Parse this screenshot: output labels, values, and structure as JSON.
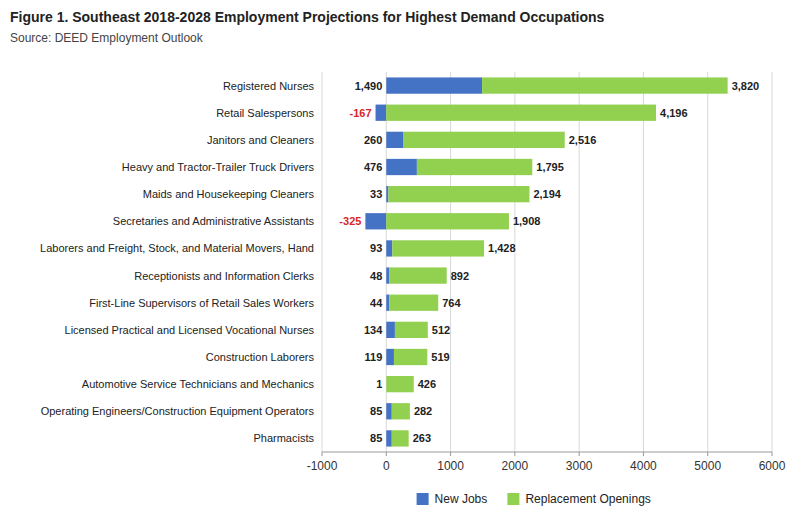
{
  "chart_data": {
    "type": "bar",
    "orientation": "horizontal",
    "stacked": true,
    "title": "Figure 1. Southeast 2018-2028 Employment Projections for Highest Demand Occupations",
    "subtitle": "Source: DEED Employment Outlook",
    "categories": [
      "Registered Nurses",
      "Retail Salespersons",
      "Janitors and Cleaners",
      "Heavy and Tractor-Trailer Truck Drivers",
      "Maids and Housekeeping Cleaners",
      "Secretaries and Administrative Assistants",
      "Laborers and Freight, Stock, and Material Movers, Hand",
      "Receptionists and Information Clerks",
      "First-Line Supervisors of Retail Sales Workers",
      "Licensed Practical and Licensed Vocational Nurses",
      "Construction Laborers",
      "Automotive Service Technicians and Mechanics",
      "Operating Engineers/Construction Equipment Operators",
      "Pharmacists"
    ],
    "series": [
      {
        "name": "New Jobs",
        "color": "#4472C4",
        "values": [
          1490,
          -167,
          260,
          476,
          33,
          -325,
          93,
          48,
          44,
          134,
          119,
          1,
          85,
          85
        ],
        "value_labels": [
          "1,490",
          "-167",
          "260",
          "476",
          "33",
          "-325",
          "93",
          "48",
          "44",
          "134",
          "119",
          "1",
          "85",
          "85"
        ]
      },
      {
        "name": "Replacement Openings",
        "color": "#92D050",
        "values": [
          3820,
          4196,
          2516,
          1795,
          2194,
          1908,
          1428,
          892,
          764,
          512,
          519,
          426,
          282,
          263
        ],
        "value_labels": [
          "3,820",
          "4,196",
          "2,516",
          "1,795",
          "2,194",
          "1,908",
          "1,428",
          "892",
          "764",
          "512",
          "519",
          "426",
          "282",
          "263"
        ]
      }
    ],
    "xlim": [
      -1000,
      6000
    ],
    "xticks": [
      -1000,
      0,
      1000,
      2000,
      3000,
      4000,
      5000,
      6000
    ],
    "grid": true,
    "legend": "bottom",
    "data_labels": true
  }
}
